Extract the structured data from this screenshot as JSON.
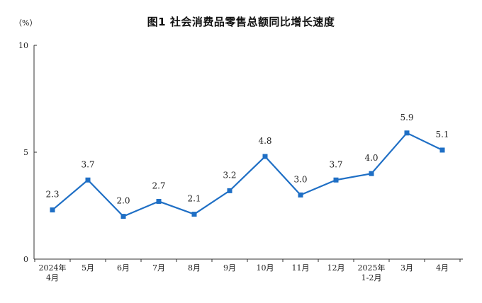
{
  "chart_data": {
    "type": "line",
    "title": "图1  社会消费品零售总额同比增长速度",
    "y_unit": "（%）",
    "categories": [
      [
        "2024年",
        "4月"
      ],
      [
        "5月"
      ],
      [
        "6月"
      ],
      [
        "7月"
      ],
      [
        "8月"
      ],
      [
        "9月"
      ],
      [
        "10月"
      ],
      [
        "11月"
      ],
      [
        "12月"
      ],
      [
        "2025年",
        "1-2月"
      ],
      [
        "3月"
      ],
      [
        "4月"
      ]
    ],
    "values": [
      2.3,
      3.7,
      2.0,
      2.7,
      2.1,
      3.2,
      4.8,
      3.0,
      3.7,
      4.0,
      5.9,
      5.1
    ],
    "value_labels": [
      "2.3",
      "3.7",
      "2.0",
      "2.7",
      "2.1",
      "3.2",
      "4.8",
      "3.0",
      "3.7",
      "4.0",
      "5.9",
      "5.1"
    ],
    "ylim": [
      0,
      10
    ],
    "yticks": [
      0,
      5,
      10
    ],
    "ytick_labels": [
      "0",
      "5",
      "10"
    ],
    "line_color": "#1f6fc5",
    "marker": "square",
    "grid": false,
    "legend": "none"
  }
}
